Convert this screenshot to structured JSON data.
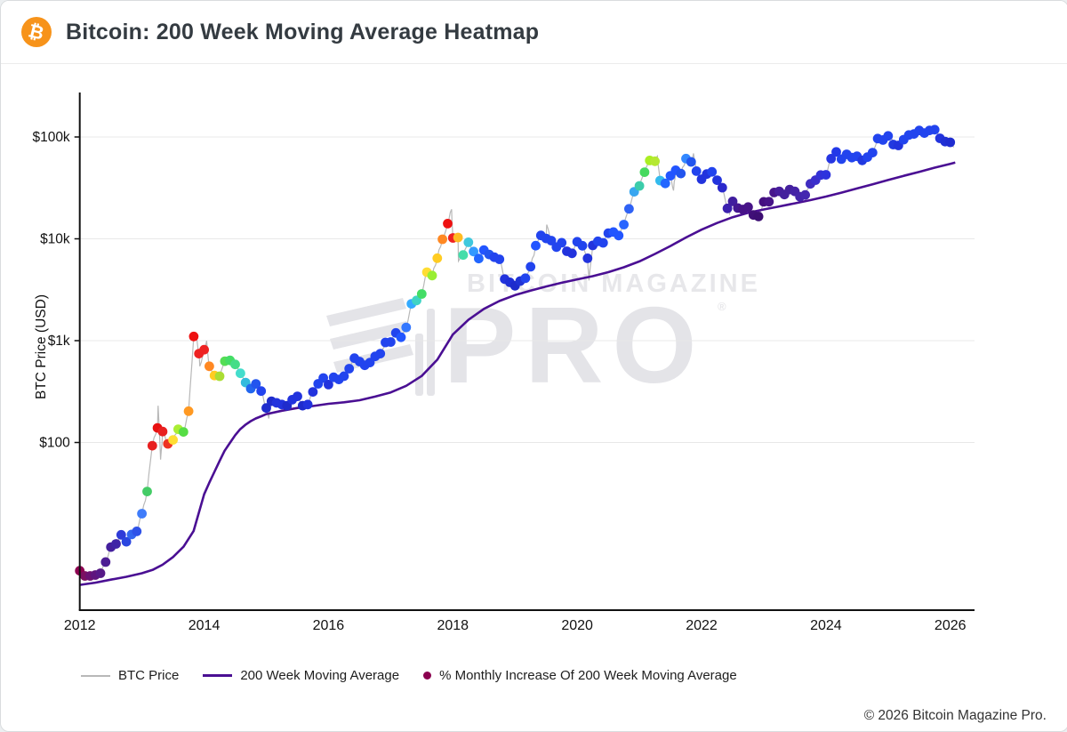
{
  "header": {
    "title": "Bitcoin: 200 Week Moving Average Heatmap",
    "logo_glyph": "₿"
  },
  "watermark": {
    "line1": "BITCOIN MAGAZINE",
    "registered": "®",
    "line2": "PRO"
  },
  "footer": {
    "copyright": "© 2026 Bitcoin Magazine Pro."
  },
  "legend": {
    "items": [
      {
        "label": "BTC Price",
        "type": "line",
        "color": "#b8b8b8",
        "thickness": 2
      },
      {
        "label": "200 Week Moving Average",
        "type": "line",
        "color": "#4a0f93",
        "thickness": 3
      },
      {
        "label": "% Monthly Increase Of 200 Week Moving Average",
        "type": "dot",
        "color": "#8b004f"
      }
    ]
  },
  "chart_data": {
    "type": "scatter",
    "title": "Bitcoin: 200 Week Moving Average Heatmap",
    "xlabel": "",
    "ylabel": "BTC Price (USD)",
    "y_axis_scale": "log",
    "x_ticks": [
      2012,
      2014,
      2016,
      2018,
      2020,
      2022,
      2024,
      2026
    ],
    "y_ticks": [
      {
        "label": "$100k",
        "value": 100000
      },
      {
        "label": "$10k",
        "value": 10000
      },
      {
        "label": "$1k",
        "value": 1000
      },
      {
        "label": "$100",
        "value": 100
      }
    ],
    "x_range": [
      2011.95,
      2026.39
    ],
    "y_range_top": 262000,
    "grid": "horizontal-only",
    "legend_position": "bottom-left",
    "colors": {
      "btc_line": "#b8b8b8",
      "wma_line": "#4a0f93",
      "axis": "#111111",
      "grid": "#e8e8e8",
      "tick_text": "#111111"
    },
    "series_notes": "btc_monthly = monthly BTC close; colors encode % monthly increase of the 200-week moving average (purple=low, blue, cyan, green, yellow, orange, red=high)",
    "btc_monthly": [
      {
        "year": 2012,
        "prices": [
          5.5,
          4.9,
          4.9,
          5.0,
          5.2,
          6.7,
          9.4,
          10.1,
          12.4,
          10.6,
          12.5,
          13.4
        ],
        "colors": [
          "#8e0152",
          "#7c1062",
          "#6c1272",
          "#5f157e",
          "#571a88",
          "#4d1d94",
          "#44209d",
          "#3f23a6",
          "#2f3bd8",
          "#2b46e0",
          "#3366f0",
          "#2f52e8"
        ]
      },
      {
        "year": 2013,
        "prices": [
          20,
          33,
          93,
          139,
          128,
          97,
          106,
          135,
          127,
          203,
          1100,
          745
        ],
        "colors": [
          "#3f7cfa",
          "#44cc66",
          "#e82020",
          "#e81111",
          "#e82020",
          "#ee3322",
          "#ffdd33",
          "#aaee33",
          "#55dd44",
          "#ff9922",
          "#ee1111",
          "#ee2222"
        ]
      },
      {
        "year": 2014,
        "prices": [
          815,
          560,
          455,
          447,
          628,
          640,
          585,
          478,
          388,
          338,
          376,
          320
        ],
        "colors": [
          "#ee2222",
          "#ff8822",
          "#ffcc22",
          "#aadd33",
          "#55dd55",
          "#44dd66",
          "#44dd88",
          "#44ddcc",
          "#33bbdd",
          "#2266ee",
          "#2255ee",
          "#2244ee"
        ]
      },
      {
        "year": 2015,
        "prices": [
          218,
          254,
          245,
          236,
          230,
          263,
          284,
          230,
          236,
          314,
          377,
          430
        ],
        "colors": [
          "#1f2ccc",
          "#1f2ccc",
          "#2233dd",
          "#2233dd",
          "#1f2ccc",
          "#2233dd",
          "#2233dd",
          "#1f2ccc",
          "#2233dd",
          "#2233dd",
          "#2244ee",
          "#2244ee"
        ]
      },
      {
        "year": 2016,
        "prices": [
          370,
          437,
          416,
          448,
          531,
          673,
          624,
          573,
          610,
          700,
          745,
          960
        ],
        "colors": [
          "#2233dd",
          "#2244ee",
          "#2244ee",
          "#2244ee",
          "#2244ee",
          "#2244ee",
          "#2244ee",
          "#2244ee",
          "#2244ee",
          "#2244ee",
          "#2244ee",
          "#2244ee"
        ]
      },
      {
        "year": 2017,
        "prices": [
          970,
          1190,
          1080,
          1350,
          2300,
          2480,
          2875,
          4700,
          4360,
          6450,
          9900,
          14100
        ],
        "colors": [
          "#2244ee",
          "#2244ee",
          "#2255ff",
          "#3377ff",
          "#33aaff",
          "#3fd4c4",
          "#44dd66",
          "#ffdd33",
          "#99ee33",
          "#ffcc22",
          "#ff8822",
          "#ee1111"
        ]
      },
      {
        "year": 2018,
        "prices": [
          10200,
          10300,
          6930,
          9240,
          7500,
          6400,
          7750,
          7020,
          6600,
          6300,
          4020,
          3740
        ],
        "colors": [
          "#ee2222",
          "#ffbb22",
          "#44ddaa",
          "#3fc8dd",
          "#3399ff",
          "#2266ff",
          "#2255ff",
          "#2255ee",
          "#2244ee",
          "#2244ee",
          "#2233dd",
          "#1f2fd6"
        ]
      },
      {
        "year": 2019,
        "prices": [
          3460,
          3850,
          4100,
          5320,
          8560,
          10800,
          10080,
          9600,
          8300,
          9150,
          7550,
          7200
        ],
        "colors": [
          "#1e2ccc",
          "#2033d4",
          "#2244ee",
          "#2244ee",
          "#2255ff",
          "#2244ee",
          "#2244ee",
          "#2244ee",
          "#2244ee",
          "#2244ee",
          "#2233dd",
          "#2233dd"
        ]
      },
      {
        "year": 2020,
        "prices": [
          9350,
          8550,
          6440,
          8620,
          9450,
          9140,
          11350,
          11650,
          10780,
          13800,
          19700,
          29000
        ],
        "colors": [
          "#2244ee",
          "#2244ee",
          "#2233dd",
          "#2233dd",
          "#2244ee",
          "#2244ee",
          "#2244ee",
          "#2255ff",
          "#2255ff",
          "#2966ff",
          "#2f62f5",
          "#38a6f0"
        ]
      },
      {
        "year": 2021,
        "prices": [
          33100,
          45100,
          58800,
          57750,
          37300,
          35000,
          41600,
          47100,
          43800,
          61300,
          57000,
          46200
        ],
        "colors": [
          "#3cccaa",
          "#46d95f",
          "#aaee22",
          "#b5e832",
          "#33bbee",
          "#2266ff",
          "#2255ff",
          "#2255ff",
          "#2255ee",
          "#3388ff",
          "#2255ee",
          "#2244ee"
        ]
      },
      {
        "year": 2022,
        "prices": [
          38500,
          43200,
          45500,
          37650,
          31800,
          19900,
          23300,
          20050,
          19400,
          20500,
          17150,
          16550
        ],
        "colors": [
          "#2233dd",
          "#2233dd",
          "#2244ee",
          "#2233dd",
          "#2a28cc",
          "#3a1fae",
          "#401d9e",
          "#441691",
          "#471388",
          "#471388",
          "#400f78",
          "#3d0e73"
        ]
      },
      {
        "year": 2023,
        "prices": [
          23100,
          23150,
          28500,
          29250,
          27200,
          30450,
          29200,
          25900,
          26950,
          34650,
          37700,
          42250
        ],
        "colors": [
          "#440f80",
          "#471388",
          "#47158c",
          "#471d9c",
          "#44209d",
          "#44209d",
          "#4422a6",
          "#4424aa",
          "#4426b0",
          "#3f2cc0",
          "#3a2ecc",
          "#3331d6"
        ]
      },
      {
        "year": 2024,
        "prices": [
          42550,
          61200,
          71300,
          60650,
          67500,
          62700,
          64600,
          58950,
          63300,
          70200,
          96400,
          93400
        ],
        "colors": [
          "#2d33dd",
          "#2636e2",
          "#2238e8",
          "#2244ee",
          "#2244ee",
          "#2244ee",
          "#2244ee",
          "#2239e0",
          "#2244ee",
          "#2244ee",
          "#2244ee",
          "#2244ee"
        ]
      },
      {
        "year": 2025,
        "prices": [
          102400,
          84350,
          82550,
          94200,
          104600,
          107100,
          115800,
          109200,
          116000,
          118000,
          97000,
          90000
        ],
        "colors": [
          "#2244ee",
          "#2239e0",
          "#2233dd",
          "#2244ee",
          "#2244ee",
          "#2244ee",
          "#2244ee",
          "#2244ee",
          "#2244ee",
          "#2244ee",
          "#2233dd",
          "#2030d4"
        ]
      },
      {
        "year": 2026,
        "prices": [
          88600
        ],
        "colors": [
          "#1f2cd0"
        ]
      }
    ],
    "btc_spikes": [
      [
        2013.26,
        230
      ],
      [
        2013.3,
        68
      ],
      [
        2013.87,
        1150
      ],
      [
        2013.93,
        560
      ],
      [
        2014.04,
        995
      ],
      [
        2015.04,
        172
      ],
      [
        2017.98,
        19500
      ],
      [
        2018.09,
        6050
      ],
      [
        2019.51,
        13800
      ],
      [
        2020.19,
        3900
      ],
      [
        2021.29,
        64800
      ],
      [
        2021.55,
        29800
      ],
      [
        2021.87,
        69000
      ],
      [
        2022.45,
        17700
      ],
      [
        2022.88,
        15600
      ],
      [
        2024.19,
        73700
      ],
      [
        2025.04,
        109300
      ],
      [
        2025.75,
        126000
      ],
      [
        2026.06,
        79500
      ]
    ],
    "wma": [
      [
        2012.0,
        4.0
      ],
      [
        2012.25,
        4.2
      ],
      [
        2012.5,
        4.5
      ],
      [
        2012.75,
        4.8
      ],
      [
        2013.0,
        5.2
      ],
      [
        2013.17,
        5.6
      ],
      [
        2013.33,
        6.3
      ],
      [
        2013.5,
        7.5
      ],
      [
        2013.67,
        9.5
      ],
      [
        2013.83,
        13.5
      ],
      [
        2014.0,
        31
      ],
      [
        2014.08,
        40
      ],
      [
        2014.17,
        52
      ],
      [
        2014.25,
        66
      ],
      [
        2014.33,
        83
      ],
      [
        2014.42,
        100
      ],
      [
        2014.5,
        118
      ],
      [
        2014.58,
        135
      ],
      [
        2014.67,
        150
      ],
      [
        2014.75,
        162
      ],
      [
        2014.83,
        172
      ],
      [
        2014.92,
        181
      ],
      [
        2015.0,
        190
      ],
      [
        2015.25,
        205
      ],
      [
        2015.5,
        218
      ],
      [
        2015.75,
        228
      ],
      [
        2016.0,
        240
      ],
      [
        2016.25,
        248
      ],
      [
        2016.5,
        260
      ],
      [
        2016.75,
        282
      ],
      [
        2017.0,
        310
      ],
      [
        2017.25,
        360
      ],
      [
        2017.5,
        450
      ],
      [
        2017.75,
        650
      ],
      [
        2018.0,
        1150
      ],
      [
        2018.25,
        1600
      ],
      [
        2018.5,
        2050
      ],
      [
        2018.75,
        2450
      ],
      [
        2019.0,
        2800
      ],
      [
        2019.25,
        3100
      ],
      [
        2019.5,
        3400
      ],
      [
        2019.75,
        3700
      ],
      [
        2020.0,
        4000
      ],
      [
        2020.25,
        4300
      ],
      [
        2020.5,
        4700
      ],
      [
        2020.75,
        5250
      ],
      [
        2021.0,
        6000
      ],
      [
        2021.25,
        7100
      ],
      [
        2021.5,
        8500
      ],
      [
        2021.75,
        10300
      ],
      [
        2022.0,
        12300
      ],
      [
        2022.25,
        14300
      ],
      [
        2022.5,
        16300
      ],
      [
        2022.75,
        18000
      ],
      [
        2023.0,
        19400
      ],
      [
        2023.25,
        20800
      ],
      [
        2023.5,
        22300
      ],
      [
        2023.75,
        24000
      ],
      [
        2024.0,
        26000
      ],
      [
        2024.25,
        28400
      ],
      [
        2024.5,
        31200
      ],
      [
        2024.75,
        34300
      ],
      [
        2025.0,
        37800
      ],
      [
        2025.25,
        41500
      ],
      [
        2025.5,
        45500
      ],
      [
        2025.75,
        50000
      ],
      [
        2026.0,
        54500
      ],
      [
        2026.08,
        56000
      ]
    ]
  }
}
